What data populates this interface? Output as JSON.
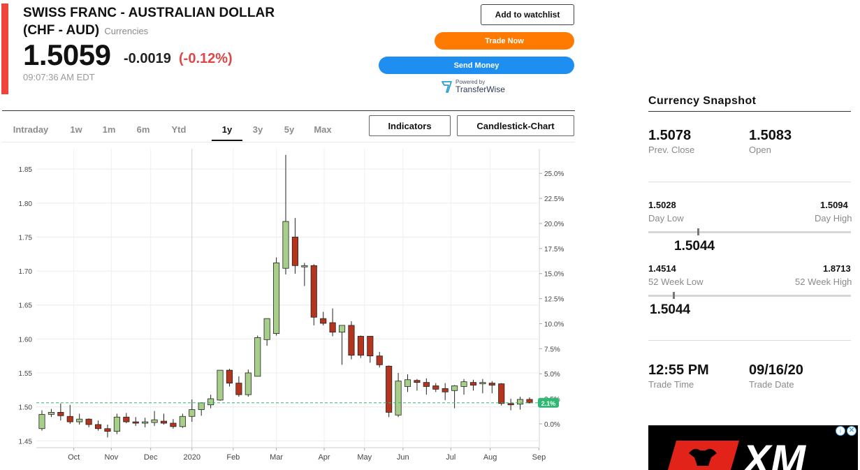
{
  "header": {
    "title": "SWISS FRANC - AUSTRALIAN DOLLAR",
    "subtitle": "(CHF - AUD)",
    "category": "Currencies",
    "price": "1.5059",
    "change": "-0.0019",
    "change_pct": "(-0.12%)",
    "timestamp": "09:07:36 AM EDT",
    "colors": {
      "accent": "#f0433a",
      "negative": "#e04646"
    }
  },
  "actions": {
    "watchlist": "Add to watchlist",
    "trade": "Trade Now",
    "send": "Send Money",
    "powered_by": "Powered by",
    "provider": "TransferWise"
  },
  "tabs": [
    "Intraday",
    "1w",
    "1m",
    "6m",
    "Ytd",
    "1y",
    "3y",
    "5y",
    "Max"
  ],
  "active_tab": "1y",
  "chart_buttons": {
    "indicators": "Indicators",
    "chart_type": "Candlestick-Chart"
  },
  "snapshot": {
    "title": "Currency Snapshot",
    "prev_close_value": "1.5078",
    "prev_close_label": "Prev. Close",
    "open_value": "1.5083",
    "open_label": "Open",
    "day_low_value": "1.5028",
    "day_low_label": "Day Low",
    "day_high_value": "1.5094",
    "day_high_label": "Day High",
    "day_current": "1.5044",
    "week52_low_value": "1.4514",
    "week52_low_label": "52 Week Low",
    "week52_high_value": "1.8713",
    "week52_high_label": "52 Week High",
    "week52_current": "1.5044",
    "trade_time_value": "12:55 PM",
    "trade_time_label": "Trade Time",
    "trade_date_value": "09/16/20",
    "trade_date_label": "Trade Date"
  },
  "ad": {
    "brand": "XM"
  },
  "chart_data": {
    "type": "candlestick",
    "title": "",
    "x_labels": [
      "Oct",
      "Nov",
      "Dec",
      "2020",
      "Feb",
      "Mar",
      "Apr",
      "May",
      "Jun",
      "Jul",
      "Aug",
      "Sep"
    ],
    "ylim": [
      1.44,
      1.88
    ],
    "y_ticks": [
      "1.45",
      "1.50",
      "1.55",
      "1.60",
      "1.65",
      "1.70",
      "1.75",
      "1.80",
      "1.85"
    ],
    "y2_ticks": [
      "0.0%",
      "2.5%",
      "5.0%",
      "7.5%",
      "10.0%",
      "12.5%",
      "15.0%",
      "17.5%",
      "20.0%",
      "22.5%",
      "25.0%"
    ],
    "last_price": 1.506,
    "last_label": "2.1%",
    "grid": true,
    "colors": {
      "up": "#a8cf8a",
      "down": "#b5341e",
      "last_line": "#2eb872"
    },
    "candles": [
      {
        "o": 1.468,
        "h": 1.495,
        "l": 1.465,
        "c": 1.489
      },
      {
        "o": 1.489,
        "h": 1.497,
        "l": 1.485,
        "c": 1.492
      },
      {
        "o": 1.492,
        "h": 1.505,
        "l": 1.48,
        "c": 1.487
      },
      {
        "o": 1.486,
        "h": 1.503,
        "l": 1.475,
        "c": 1.478
      },
      {
        "o": 1.478,
        "h": 1.49,
        "l": 1.474,
        "c": 1.482
      },
      {
        "o": 1.482,
        "h": 1.483,
        "l": 1.47,
        "c": 1.474
      },
      {
        "o": 1.474,
        "h": 1.48,
        "l": 1.465,
        "c": 1.468
      },
      {
        "o": 1.468,
        "h": 1.474,
        "l": 1.455,
        "c": 1.464
      },
      {
        "o": 1.464,
        "h": 1.49,
        "l": 1.46,
        "c": 1.485
      },
      {
        "o": 1.485,
        "h": 1.491,
        "l": 1.476,
        "c": 1.478
      },
      {
        "o": 1.478,
        "h": 1.485,
        "l": 1.472,
        "c": 1.476
      },
      {
        "o": 1.476,
        "h": 1.484,
        "l": 1.47,
        "c": 1.478
      },
      {
        "o": 1.477,
        "h": 1.494,
        "l": 1.472,
        "c": 1.481
      },
      {
        "o": 1.479,
        "h": 1.49,
        "l": 1.474,
        "c": 1.476
      },
      {
        "o": 1.476,
        "h": 1.482,
        "l": 1.468,
        "c": 1.471
      },
      {
        "o": 1.471,
        "h": 1.49,
        "l": 1.469,
        "c": 1.486
      },
      {
        "o": 1.486,
        "h": 1.511,
        "l": 1.478,
        "c": 1.496
      },
      {
        "o": 1.496,
        "h": 1.505,
        "l": 1.487,
        "c": 1.506
      },
      {
        "o": 1.503,
        "h": 1.518,
        "l": 1.498,
        "c": 1.512
      },
      {
        "o": 1.51,
        "h": 1.554,
        "l": 1.509,
        "c": 1.554
      },
      {
        "o": 1.554,
        "h": 1.556,
        "l": 1.53,
        "c": 1.535
      },
      {
        "o": 1.535,
        "h": 1.545,
        "l": 1.515,
        "c": 1.518
      },
      {
        "o": 1.518,
        "h": 1.555,
        "l": 1.515,
        "c": 1.55
      },
      {
        "o": 1.545,
        "h": 1.605,
        "l": 1.545,
        "c": 1.602
      },
      {
        "o": 1.599,
        "h": 1.63,
        "l": 1.59,
        "c": 1.63
      },
      {
        "o": 1.608,
        "h": 1.72,
        "l": 1.605,
        "c": 1.712
      },
      {
        "o": 1.704,
        "h": 1.871,
        "l": 1.695,
        "c": 1.773
      },
      {
        "o": 1.75,
        "h": 1.778,
        "l": 1.696,
        "c": 1.708
      },
      {
        "o": 1.706,
        "h": 1.712,
        "l": 1.678,
        "c": 1.708
      },
      {
        "o": 1.708,
        "h": 1.71,
        "l": 1.62,
        "c": 1.632
      },
      {
        "o": 1.63,
        "h": 1.64,
        "l": 1.62,
        "c": 1.623
      },
      {
        "o": 1.624,
        "h": 1.645,
        "l": 1.604,
        "c": 1.61
      },
      {
        "o": 1.61,
        "h": 1.62,
        "l": 1.562,
        "c": 1.62
      },
      {
        "o": 1.62,
        "h": 1.626,
        "l": 1.57,
        "c": 1.576
      },
      {
        "o": 1.604,
        "h": 1.605,
        "l": 1.572,
        "c": 1.576
      },
      {
        "o": 1.604,
        "h": 1.604,
        "l": 1.565,
        "c": 1.575
      },
      {
        "o": 1.575,
        "h": 1.581,
        "l": 1.558,
        "c": 1.562
      },
      {
        "o": 1.56,
        "h": 1.561,
        "l": 1.485,
        "c": 1.492
      },
      {
        "o": 1.488,
        "h": 1.55,
        "l": 1.485,
        "c": 1.538
      },
      {
        "o": 1.53,
        "h": 1.548,
        "l": 1.522,
        "c": 1.54
      },
      {
        "o": 1.539,
        "h": 1.541,
        "l": 1.524,
        "c": 1.536
      },
      {
        "o": 1.536,
        "h": 1.542,
        "l": 1.518,
        "c": 1.53
      },
      {
        "o": 1.531,
        "h": 1.535,
        "l": 1.522,
        "c": 1.526
      },
      {
        "o": 1.527,
        "h": 1.535,
        "l": 1.51,
        "c": 1.522
      },
      {
        "o": 1.524,
        "h": 1.532,
        "l": 1.498,
        "c": 1.531
      },
      {
        "o": 1.53,
        "h": 1.541,
        "l": 1.518,
        "c": 1.537
      },
      {
        "o": 1.536,
        "h": 1.54,
        "l": 1.524,
        "c": 1.532
      },
      {
        "o": 1.534,
        "h": 1.541,
        "l": 1.52,
        "c": 1.536
      },
      {
        "o": 1.535,
        "h": 1.538,
        "l": 1.52,
        "c": 1.532
      },
      {
        "o": 1.534,
        "h": 1.535,
        "l": 1.502,
        "c": 1.505
      },
      {
        "o": 1.505,
        "h": 1.512,
        "l": 1.495,
        "c": 1.503
      },
      {
        "o": 1.504,
        "h": 1.515,
        "l": 1.496,
        "c": 1.511
      },
      {
        "o": 1.511,
        "h": 1.514,
        "l": 1.505,
        "c": 1.506
      }
    ]
  }
}
